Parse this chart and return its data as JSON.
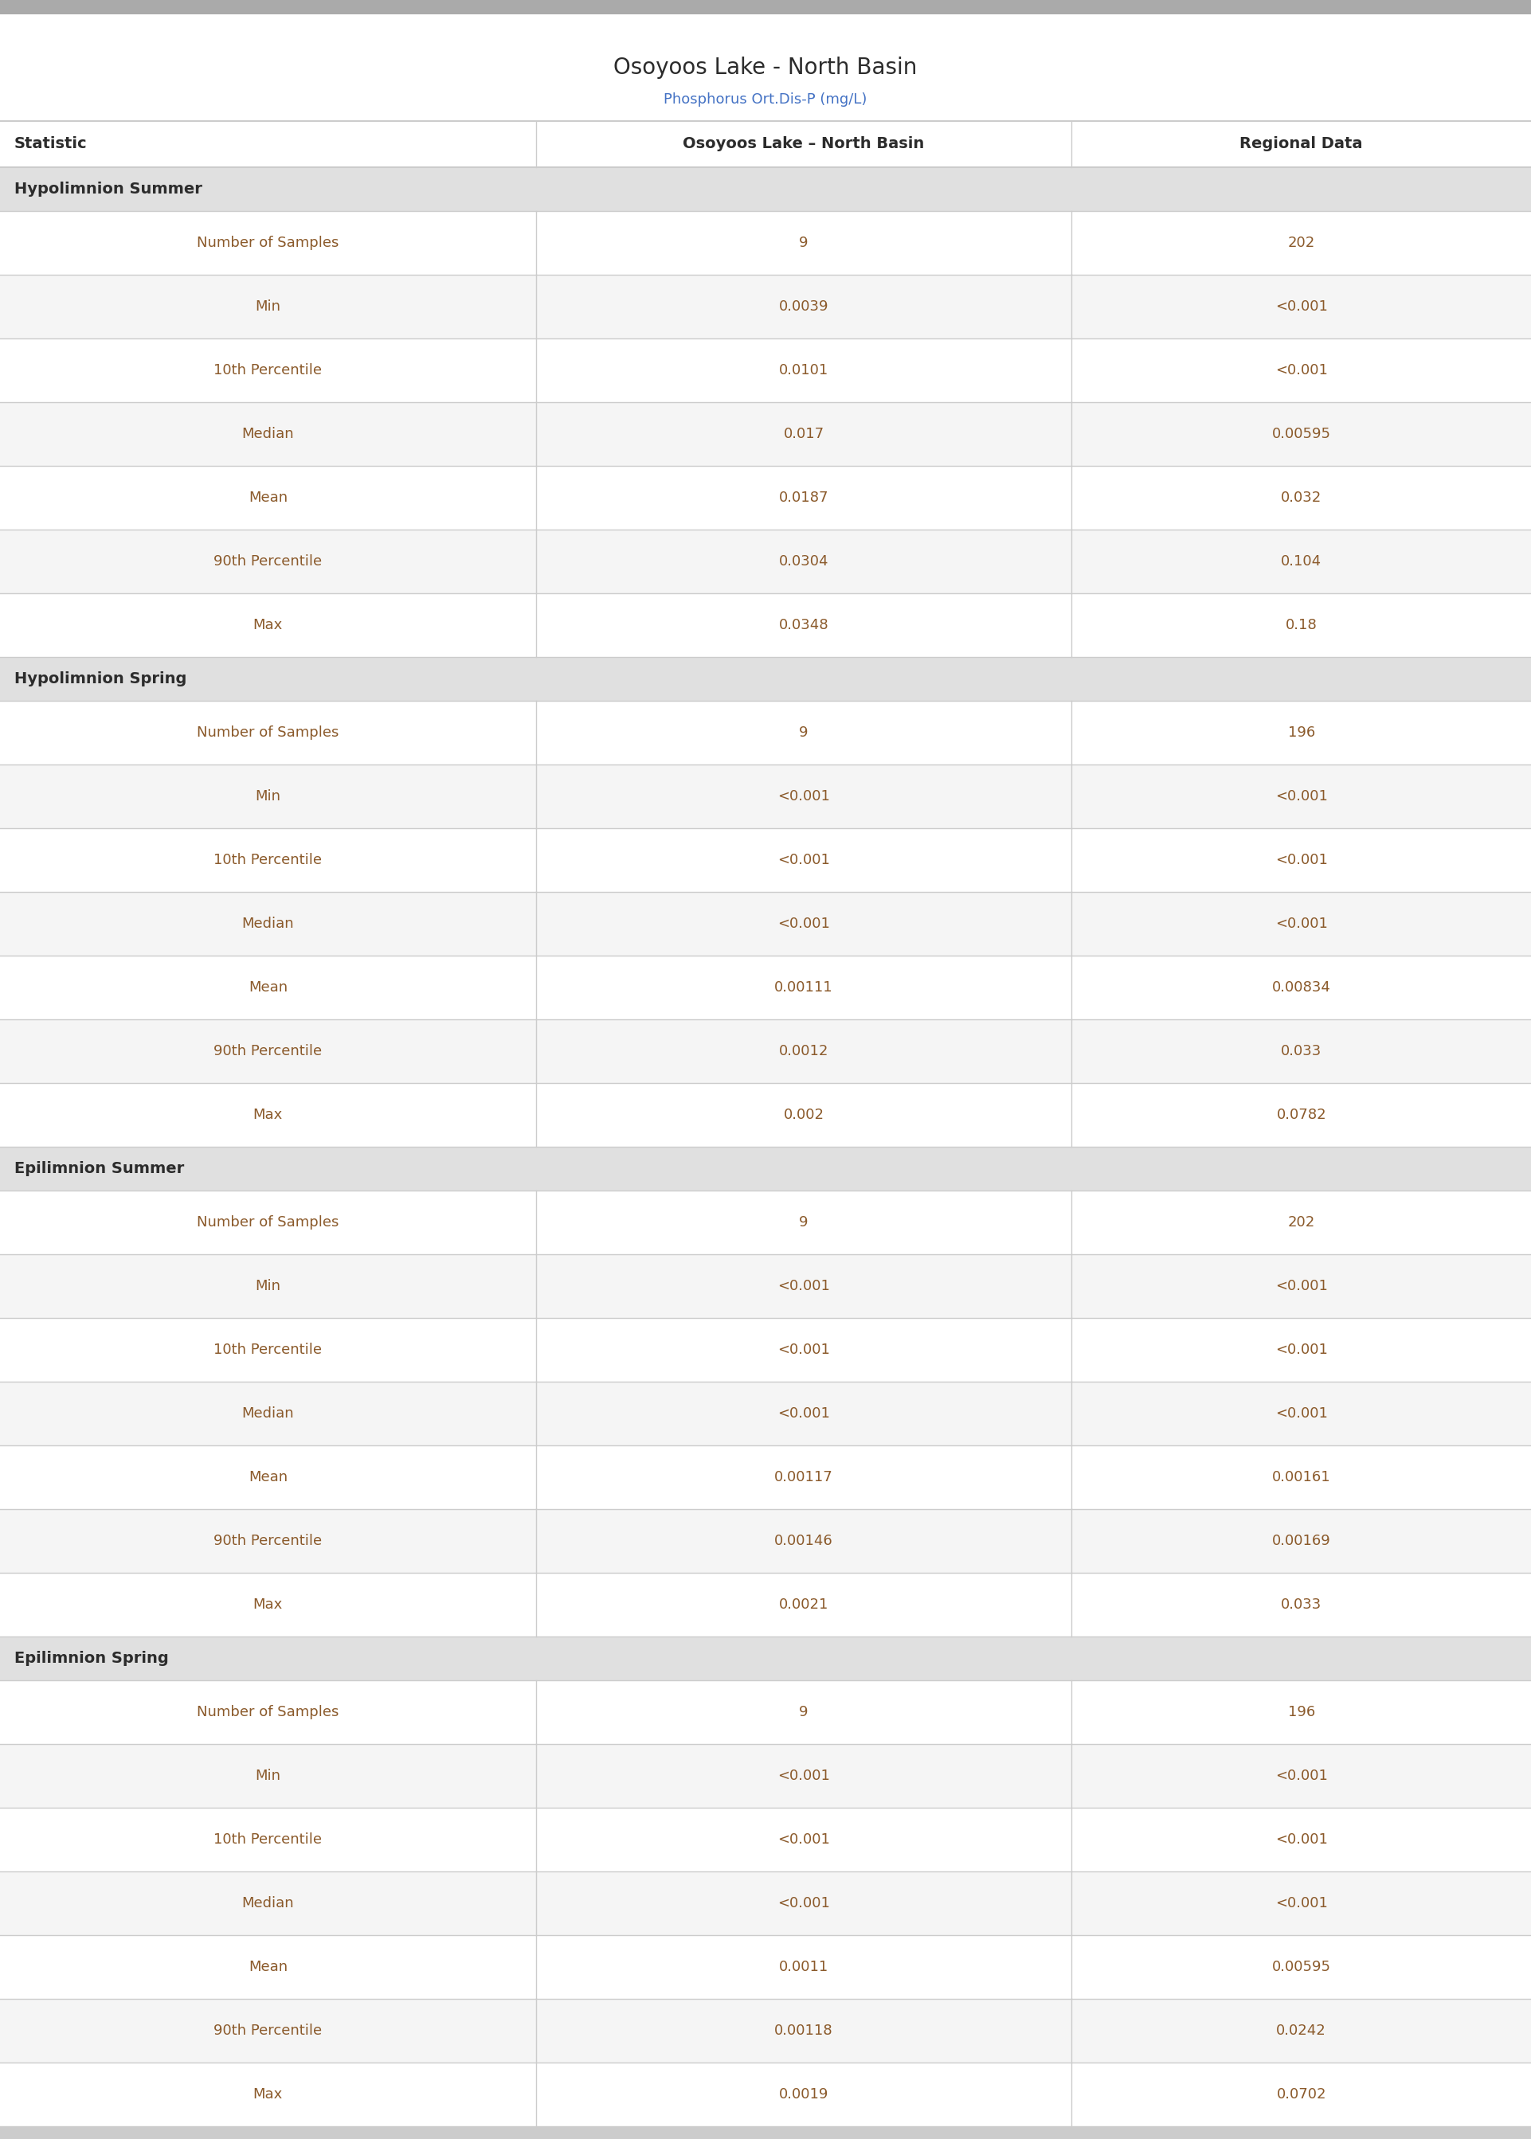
{
  "title": "Osoyoos Lake - North Basin",
  "subtitle": "Phosphorus Ort.Dis-P (mg/L)",
  "col_headers": [
    "Statistic",
    "Osoyoos Lake – North Basin",
    "Regional Data"
  ],
  "sections": [
    {
      "name": "Hypolimnion Summer",
      "rows": [
        [
          "Number of Samples",
          "9",
          "202"
        ],
        [
          "Min",
          "0.0039",
          "<0.001"
        ],
        [
          "10th Percentile",
          "0.0101",
          "<0.001"
        ],
        [
          "Median",
          "0.017",
          "0.00595"
        ],
        [
          "Mean",
          "0.0187",
          "0.032"
        ],
        [
          "90th Percentile",
          "0.0304",
          "0.104"
        ],
        [
          "Max",
          "0.0348",
          "0.18"
        ]
      ]
    },
    {
      "name": "Hypolimnion Spring",
      "rows": [
        [
          "Number of Samples",
          "9",
          "196"
        ],
        [
          "Min",
          "<0.001",
          "<0.001"
        ],
        [
          "10th Percentile",
          "<0.001",
          "<0.001"
        ],
        [
          "Median",
          "<0.001",
          "<0.001"
        ],
        [
          "Mean",
          "0.00111",
          "0.00834"
        ],
        [
          "90th Percentile",
          "0.0012",
          "0.033"
        ],
        [
          "Max",
          "0.002",
          "0.0782"
        ]
      ]
    },
    {
      "name": "Epilimnion Summer",
      "rows": [
        [
          "Number of Samples",
          "9",
          "202"
        ],
        [
          "Min",
          "<0.001",
          "<0.001"
        ],
        [
          "10th Percentile",
          "<0.001",
          "<0.001"
        ],
        [
          "Median",
          "<0.001",
          "<0.001"
        ],
        [
          "Mean",
          "0.00117",
          "0.00161"
        ],
        [
          "90th Percentile",
          "0.00146",
          "0.00169"
        ],
        [
          "Max",
          "0.0021",
          "0.033"
        ]
      ]
    },
    {
      "name": "Epilimnion Spring",
      "rows": [
        [
          "Number of Samples",
          "9",
          "196"
        ],
        [
          "Min",
          "<0.001",
          "<0.001"
        ],
        [
          "10th Percentile",
          "<0.001",
          "<0.001"
        ],
        [
          "Median",
          "<0.001",
          "<0.001"
        ],
        [
          "Mean",
          "0.0011",
          "0.00595"
        ],
        [
          "90th Percentile",
          "0.00118",
          "0.0242"
        ],
        [
          "Max",
          "0.0019",
          "0.0702"
        ]
      ]
    }
  ],
  "bg_color": "#ffffff",
  "section_bg": "#e0e0e0",
  "row_bg_even": "#ffffff",
  "row_bg_odd": "#f5f5f5",
  "top_bar_color": "#aaaaaa",
  "bottom_bar_color": "#cccccc",
  "col_header_text_color": "#2c2c2c",
  "section_text_color": "#2c2c2c",
  "data_text_color": "#8b5a2b",
  "title_color": "#2c2c2c",
  "subtitle_color": "#4472c4",
  "line_color": "#cccccc",
  "col_splits": [
    0.35,
    0.7
  ],
  "title_fontsize": 20,
  "subtitle_fontsize": 13,
  "header_fontsize": 14,
  "section_fontsize": 14,
  "data_fontsize": 13
}
